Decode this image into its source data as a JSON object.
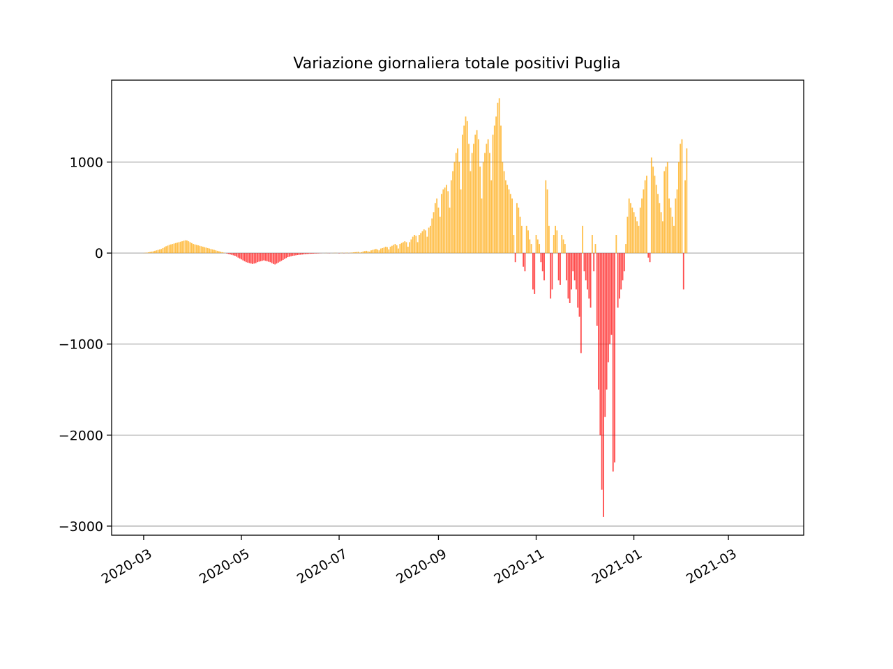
{
  "chart_data": {
    "type": "bar",
    "title": "Variazione giornaliera totale positivi Puglia",
    "xlabel": "",
    "ylabel": "",
    "x_start": "2020-02-24",
    "x_range": [
      "2020-02-10",
      "2021-04-17"
    ],
    "ylim": [
      -3100,
      1900
    ],
    "y_ticks": [
      1000,
      0,
      -1000,
      -2000,
      -3000
    ],
    "y_tick_labels": [
      "1000",
      "0",
      "−1000",
      "−2000",
      "−3000"
    ],
    "x_ticks": [
      "2020-03-01",
      "2020-05-01",
      "2020-07-01",
      "2020-09-01",
      "2020-11-01",
      "2021-01-01",
      "2021-03-01"
    ],
    "x_tick_labels": [
      "2020-03",
      "2020-05",
      "2020-07",
      "2020-09",
      "2020-11",
      "2021-01",
      "2021-03"
    ],
    "grid": "y",
    "colors": {
      "positive": "#FFA500",
      "negative": "#FF0000",
      "grid": "#b0b0b0"
    },
    "values": [
      0,
      0,
      0,
      0,
      0,
      0,
      1,
      3,
      5,
      8,
      12,
      16,
      20,
      25,
      30,
      35,
      40,
      45,
      55,
      65,
      75,
      82,
      90,
      95,
      100,
      105,
      110,
      115,
      120,
      125,
      130,
      135,
      140,
      138,
      130,
      120,
      110,
      100,
      95,
      90,
      85,
      80,
      75,
      70,
      65,
      60,
      55,
      50,
      45,
      40,
      35,
      30,
      25,
      20,
      15,
      10,
      5,
      0,
      -5,
      -10,
      -15,
      -20,
      -25,
      -30,
      -40,
      -50,
      -60,
      -70,
      -80,
      -90,
      -100,
      -105,
      -110,
      -115,
      -120,
      -115,
      -110,
      -100,
      -95,
      -90,
      -85,
      -80,
      -85,
      -90,
      -95,
      -100,
      -110,
      -120,
      -125,
      -115,
      -105,
      -95,
      -85,
      -75,
      -65,
      -55,
      -45,
      -40,
      -35,
      -30,
      -28,
      -25,
      -22,
      -20,
      -18,
      -16,
      -14,
      -12,
      -10,
      -9,
      -8,
      -7,
      -6,
      -5,
      -4,
      -3,
      -2,
      -1,
      0,
      1,
      2,
      -1,
      -2,
      0,
      1,
      2,
      3,
      0,
      -3,
      2,
      4,
      -2,
      3,
      5,
      -1,
      4,
      6,
      8,
      10,
      12,
      14,
      5,
      10,
      18,
      22,
      25,
      20,
      15,
      30,
      35,
      40,
      45,
      38,
      30,
      50,
      55,
      60,
      70,
      65,
      40,
      70,
      80,
      90,
      100,
      85,
      50,
      100,
      110,
      120,
      130,
      120,
      70,
      120,
      150,
      180,
      200,
      190,
      120,
      200,
      220,
      240,
      260,
      250,
      180,
      280,
      300,
      380,
      450,
      550,
      600,
      500,
      400,
      650,
      700,
      720,
      750,
      680,
      500,
      800,
      900,
      1000,
      1100,
      1150,
      1000,
      700,
      1300,
      1400,
      1500,
      1450,
      1200,
      900,
      1100,
      1200,
      1300,
      1350,
      1250,
      950,
      600,
      1000,
      1100,
      1200,
      1250,
      1100,
      800,
      1300,
      1400,
      1500,
      1650,
      1700,
      1400,
      1000,
      900,
      800,
      750,
      700,
      650,
      600,
      200,
      -100,
      550,
      500,
      400,
      300,
      -150,
      -200,
      300,
      250,
      150,
      100,
      -400,
      -450,
      200,
      150,
      100,
      -100,
      -200,
      -300,
      800,
      700,
      300,
      -500,
      -400,
      200,
      300,
      250,
      -300,
      -350,
      200,
      150,
      100,
      -300,
      -500,
      -550,
      -400,
      -200,
      -300,
      -400,
      -600,
      -700,
      -1100,
      300,
      -200,
      -300,
      -400,
      -500,
      -600,
      200,
      -200,
      100,
      -800,
      -1500,
      -2000,
      -2600,
      -2900,
      -1800,
      -1500,
      -1200,
      -1000,
      -900,
      -2400,
      -2300,
      200,
      -600,
      -500,
      -400,
      -300,
      -200,
      100,
      400,
      600,
      550,
      500,
      450,
      400,
      350,
      300,
      500,
      600,
      700,
      800,
      850,
      -50,
      -100,
      1050,
      950,
      850,
      750,
      650,
      550,
      450,
      350,
      900,
      950,
      1000,
      600,
      500,
      400,
      300,
      600,
      700,
      1000,
      1200,
      1250,
      -400,
      800,
      1150
    ]
  }
}
